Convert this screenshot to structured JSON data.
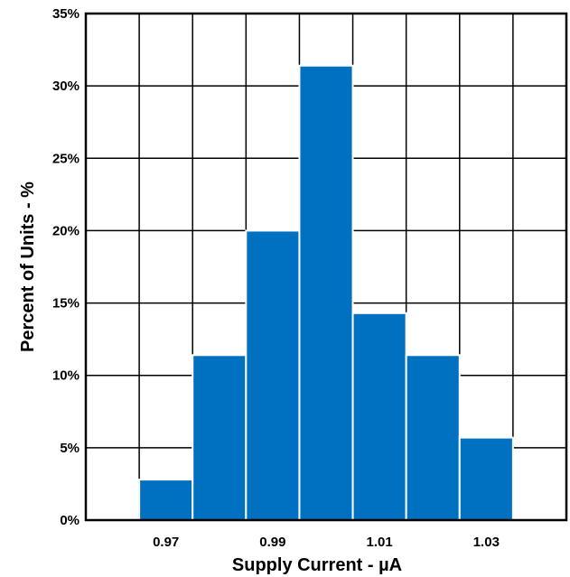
{
  "chart_data": {
    "type": "bar",
    "title": "",
    "xlabel": "Supply Current - µA",
    "ylabel": "Percent of Units - %",
    "x_range": [
      0.955,
      1.045
    ],
    "ylim": [
      0,
      35
    ],
    "y_ticks": [
      0,
      5,
      10,
      15,
      20,
      25,
      30,
      35
    ],
    "y_tick_suffix": "%",
    "x_ticks": [
      0.97,
      0.99,
      1.01,
      1.03
    ],
    "x_tick_labels": [
      "0.97",
      "0.99",
      "1.01",
      "1.03"
    ],
    "x_gridlines": [
      0.965,
      0.975,
      0.985,
      0.995,
      1.005,
      1.015,
      1.025,
      1.035
    ],
    "grid": true,
    "bar_color": "#0070C0",
    "bins": [
      {
        "center": 0.97,
        "value": 2.8
      },
      {
        "center": 0.98,
        "value": 11.4
      },
      {
        "center": 0.99,
        "value": 20.0
      },
      {
        "center": 1.0,
        "value": 31.4
      },
      {
        "center": 1.01,
        "value": 14.3
      },
      {
        "center": 1.02,
        "value": 11.4
      },
      {
        "center": 1.03,
        "value": 5.7
      }
    ]
  }
}
